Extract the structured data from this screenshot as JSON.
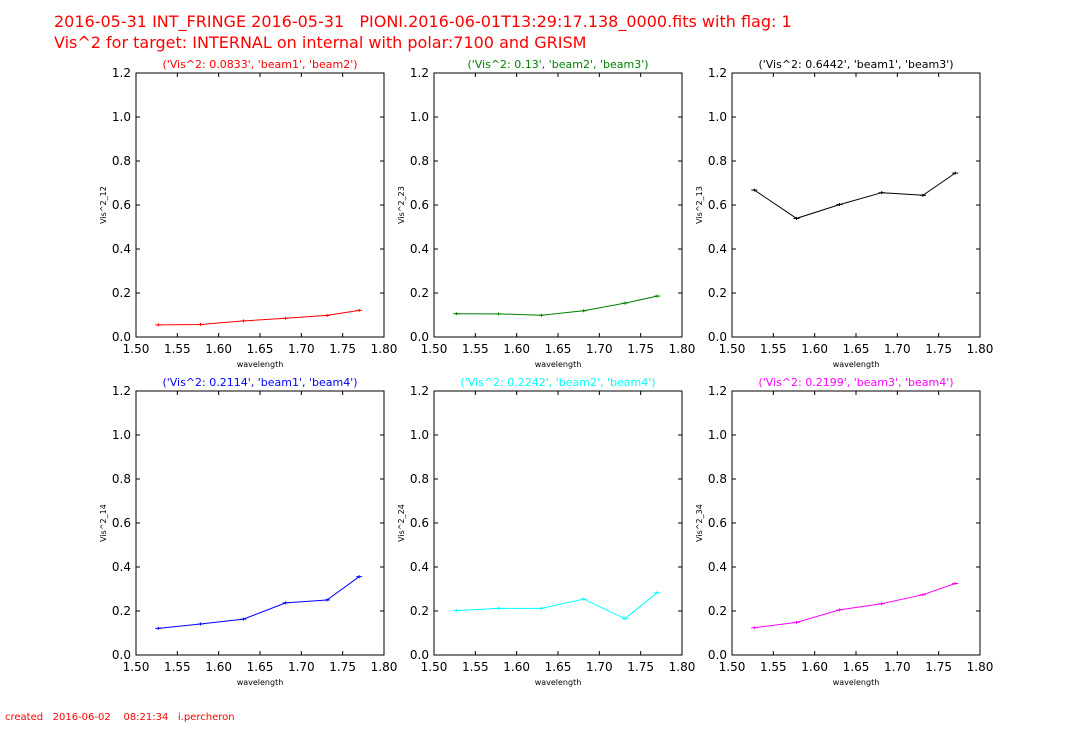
{
  "header": {
    "line1": "2016-05-31 INT_FRINGE 2016-05-31   PIONI.2016-06-01T13:29:17.138_0000.fits with flag: 1",
    "line2": "Vis^2 for target: INTERNAL on internal with polar:7100 and GRISM"
  },
  "footer": {
    "text": "created   2016-06-02    08:21:34   i.percheron"
  },
  "chart_data": [
    {
      "type": "line",
      "title": "('Vis^2: 0.0833', 'beam1', 'beam2')",
      "color": "#ff0000",
      "xlabel": "wavelength",
      "ylabel": "Vis^2_12",
      "xlim": [
        1.5,
        1.8
      ],
      "ylim": [
        0.0,
        1.2
      ],
      "xticks": [
        "1.50",
        "1.55",
        "1.60",
        "1.65",
        "1.70",
        "1.75",
        "1.80"
      ],
      "yticks": [
        "0.0",
        "0.2",
        "0.4",
        "0.6",
        "0.8",
        "1.0",
        "1.2"
      ],
      "x": [
        1.527,
        1.578,
        1.63,
        1.681,
        1.731,
        1.77
      ],
      "y": [
        0.055,
        0.057,
        0.073,
        0.085,
        0.098,
        0.121
      ]
    },
    {
      "type": "line",
      "title": "('Vis^2: 0.13', 'beam2', 'beam3')",
      "color": "#008000",
      "xlabel": "wavelength",
      "ylabel": "Vis^2_23",
      "xlim": [
        1.5,
        1.8
      ],
      "ylim": [
        0.0,
        1.2
      ],
      "xticks": [
        "1.50",
        "1.55",
        "1.60",
        "1.65",
        "1.70",
        "1.75",
        "1.80"
      ],
      "yticks": [
        "0.0",
        "0.2",
        "0.4",
        "0.6",
        "0.8",
        "1.0",
        "1.2"
      ],
      "x": [
        1.527,
        1.578,
        1.63,
        1.681,
        1.731,
        1.77
      ],
      "y": [
        0.106,
        0.105,
        0.099,
        0.119,
        0.154,
        0.186
      ]
    },
    {
      "type": "line",
      "title": "('Vis^2: 0.6442', 'beam1', 'beam3')",
      "color": "#000000",
      "xlabel": "wavelength",
      "ylabel": "Vis^2_13",
      "xlim": [
        1.5,
        1.8
      ],
      "ylim": [
        0.0,
        1.2
      ],
      "xticks": [
        "1.50",
        "1.55",
        "1.60",
        "1.65",
        "1.70",
        "1.75",
        "1.80"
      ],
      "yticks": [
        "0.0",
        "0.2",
        "0.4",
        "0.6",
        "0.8",
        "1.0",
        "1.2"
      ],
      "x": [
        1.527,
        1.578,
        1.63,
        1.681,
        1.731,
        1.77
      ],
      "y": [
        0.668,
        0.539,
        0.602,
        0.656,
        0.644,
        0.745
      ]
    },
    {
      "type": "line",
      "title": "('Vis^2: 0.2114', 'beam1', 'beam4')",
      "color": "#0000ff",
      "xlabel": "wavelength",
      "ylabel": "Vis^2_14",
      "xlim": [
        1.5,
        1.8
      ],
      "ylim": [
        0.0,
        1.2
      ],
      "xticks": [
        "1.50",
        "1.55",
        "1.60",
        "1.65",
        "1.70",
        "1.75",
        "1.80"
      ],
      "yticks": [
        "0.0",
        "0.2",
        "0.4",
        "0.6",
        "0.8",
        "1.0",
        "1.2"
      ],
      "x": [
        1.527,
        1.578,
        1.63,
        1.681,
        1.731,
        1.77
      ],
      "y": [
        0.121,
        0.141,
        0.163,
        0.237,
        0.25,
        0.356
      ]
    },
    {
      "type": "line",
      "title": "('Vis^2: 0.2242', 'beam2', 'beam4')",
      "color": "#00ffff",
      "xlabel": "wavelength",
      "ylabel": "Vis^2_24",
      "xlim": [
        1.5,
        1.8
      ],
      "ylim": [
        0.0,
        1.2
      ],
      "xticks": [
        "1.50",
        "1.55",
        "1.60",
        "1.65",
        "1.70",
        "1.75",
        "1.80"
      ],
      "yticks": [
        "0.0",
        "0.2",
        "0.4",
        "0.6",
        "0.8",
        "1.0",
        "1.2"
      ],
      "x": [
        1.527,
        1.578,
        1.63,
        1.681,
        1.731,
        1.77
      ],
      "y": [
        0.202,
        0.212,
        0.212,
        0.254,
        0.165,
        0.283
      ]
    },
    {
      "type": "line",
      "title": "('Vis^2: 0.2199', 'beam3', 'beam4')",
      "color": "#ff00ff",
      "xlabel": "wavelength",
      "ylabel": "Vis^2_34",
      "xlim": [
        1.5,
        1.8
      ],
      "ylim": [
        0.0,
        1.2
      ],
      "xticks": [
        "1.50",
        "1.55",
        "1.60",
        "1.65",
        "1.70",
        "1.75",
        "1.80"
      ],
      "yticks": [
        "0.0",
        "0.2",
        "0.4",
        "0.6",
        "0.8",
        "1.0",
        "1.2"
      ],
      "x": [
        1.527,
        1.578,
        1.63,
        1.681,
        1.731,
        1.77
      ],
      "y": [
        0.124,
        0.148,
        0.205,
        0.233,
        0.274,
        0.325
      ]
    }
  ]
}
